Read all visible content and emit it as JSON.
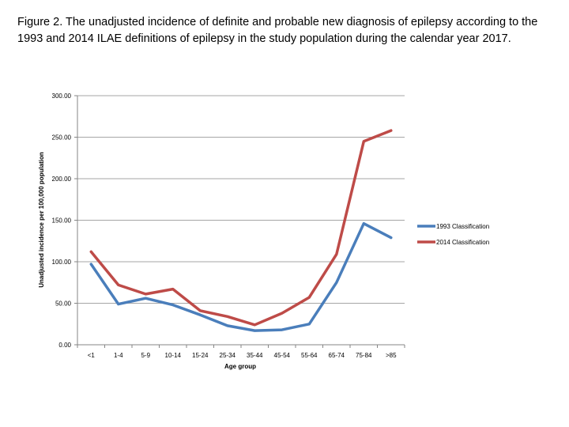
{
  "caption": "Figure 2. The unadjusted incidence of definite and probable new diagnosis of epilepsy according to the 1993 and 2014 ILAE definitions of epilepsy in the study population during the calendar year 2017.",
  "chart_data": {
    "type": "line",
    "categories": [
      "<1",
      "1-4",
      "5-9",
      "10-14",
      "15-24",
      "25-34",
      "35-44",
      "45-54",
      "55-64",
      "65-74",
      "75-84",
      ">85"
    ],
    "series": [
      {
        "name": "1993 Classification",
        "color": "#4a7ebb",
        "values": [
          97,
          49,
          56,
          48,
          36,
          23,
          17,
          18,
          25,
          75,
          146,
          129
        ]
      },
      {
        "name": "2014 Classification",
        "color": "#be4b48",
        "values": [
          112,
          72,
          61,
          67,
          41,
          34,
          24,
          38,
          57,
          109,
          245,
          258
        ]
      }
    ],
    "xlabel": "Age group",
    "ylabel": "Unadjusted incidence per 100,000 population",
    "yticks": [
      "0.00",
      "50.00",
      "100.00",
      "150.00",
      "200.00",
      "250.00",
      "300.00"
    ],
    "ylim": [
      0,
      300
    ],
    "grid": true,
    "legend": "right"
  }
}
